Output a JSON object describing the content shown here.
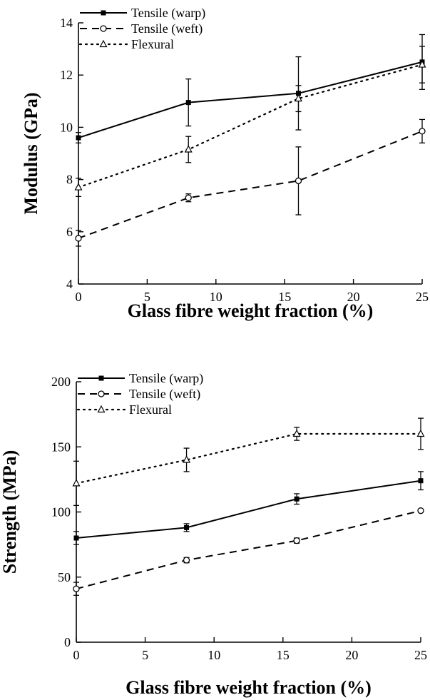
{
  "chart_data": [
    {
      "type": "line",
      "title": "",
      "xlabel": "Glass fibre weight fraction (%)",
      "ylabel": "Modulus (GPa)",
      "xlim": [
        0,
        25
      ],
      "ylim": [
        4,
        14
      ],
      "xticks": [
        0,
        5,
        10,
        15,
        20,
        25
      ],
      "yticks": [
        4,
        6,
        8,
        10,
        12,
        14
      ],
      "xtick_labels": [
        "0",
        "5",
        "10",
        "15",
        "20",
        "25"
      ],
      "ytick_labels": [
        "4",
        "6",
        "8",
        "10",
        "12",
        "14"
      ],
      "legend_position": "top-left",
      "grid": false,
      "x": [
        0,
        8,
        16,
        25
      ],
      "series": [
        {
          "name": "Tensile (warp)",
          "style": "solid",
          "marker": "square",
          "values": [
            9.6,
            10.95,
            11.3,
            12.5
          ],
          "errors": [
            0.2,
            0.9,
            1.4,
            1.05
          ]
        },
        {
          "name": "Tensile (weft)",
          "style": "dashed",
          "marker": "circle",
          "values": [
            5.75,
            7.3,
            7.95,
            9.85
          ],
          "errors": [
            0.3,
            0.15,
            1.3,
            0.45
          ]
        },
        {
          "name": "Flexural",
          "style": "dotted",
          "marker": "triangle",
          "values": [
            7.7,
            9.15,
            11.1,
            12.4
          ],
          "errors": [
            0.35,
            0.5,
            0.5,
            0.7
          ]
        }
      ]
    },
    {
      "type": "line",
      "title": "",
      "xlabel": "Glass fibre weight fraction (%)",
      "ylabel": "Strength (MPa)",
      "xlim": [
        0,
        25
      ],
      "ylim": [
        0,
        200
      ],
      "xticks": [
        0,
        5,
        10,
        15,
        20,
        25
      ],
      "yticks": [
        0,
        50,
        100,
        150,
        200
      ],
      "xtick_labels": [
        "0",
        "5",
        "10",
        "15",
        "20",
        "25"
      ],
      "ytick_labels": [
        "0",
        "50",
        "100",
        "150",
        "200"
      ],
      "legend_position": "top-left",
      "grid": false,
      "x": [
        0,
        8,
        16,
        25
      ],
      "series": [
        {
          "name": "Tensile (warp)",
          "style": "solid",
          "marker": "square",
          "values": [
            80,
            88,
            110,
            124
          ],
          "errors": [
            5,
            3,
            4,
            7
          ]
        },
        {
          "name": "Tensile (weft)",
          "style": "dashed",
          "marker": "circle",
          "values": [
            41,
            63,
            78,
            101
          ],
          "errors": [
            5,
            2,
            2,
            1
          ]
        },
        {
          "name": "Flexural",
          "style": "dotted",
          "marker": "triangle",
          "values": [
            122,
            140,
            160,
            160
          ],
          "errors": [
            17,
            9,
            5,
            12
          ]
        }
      ]
    }
  ]
}
